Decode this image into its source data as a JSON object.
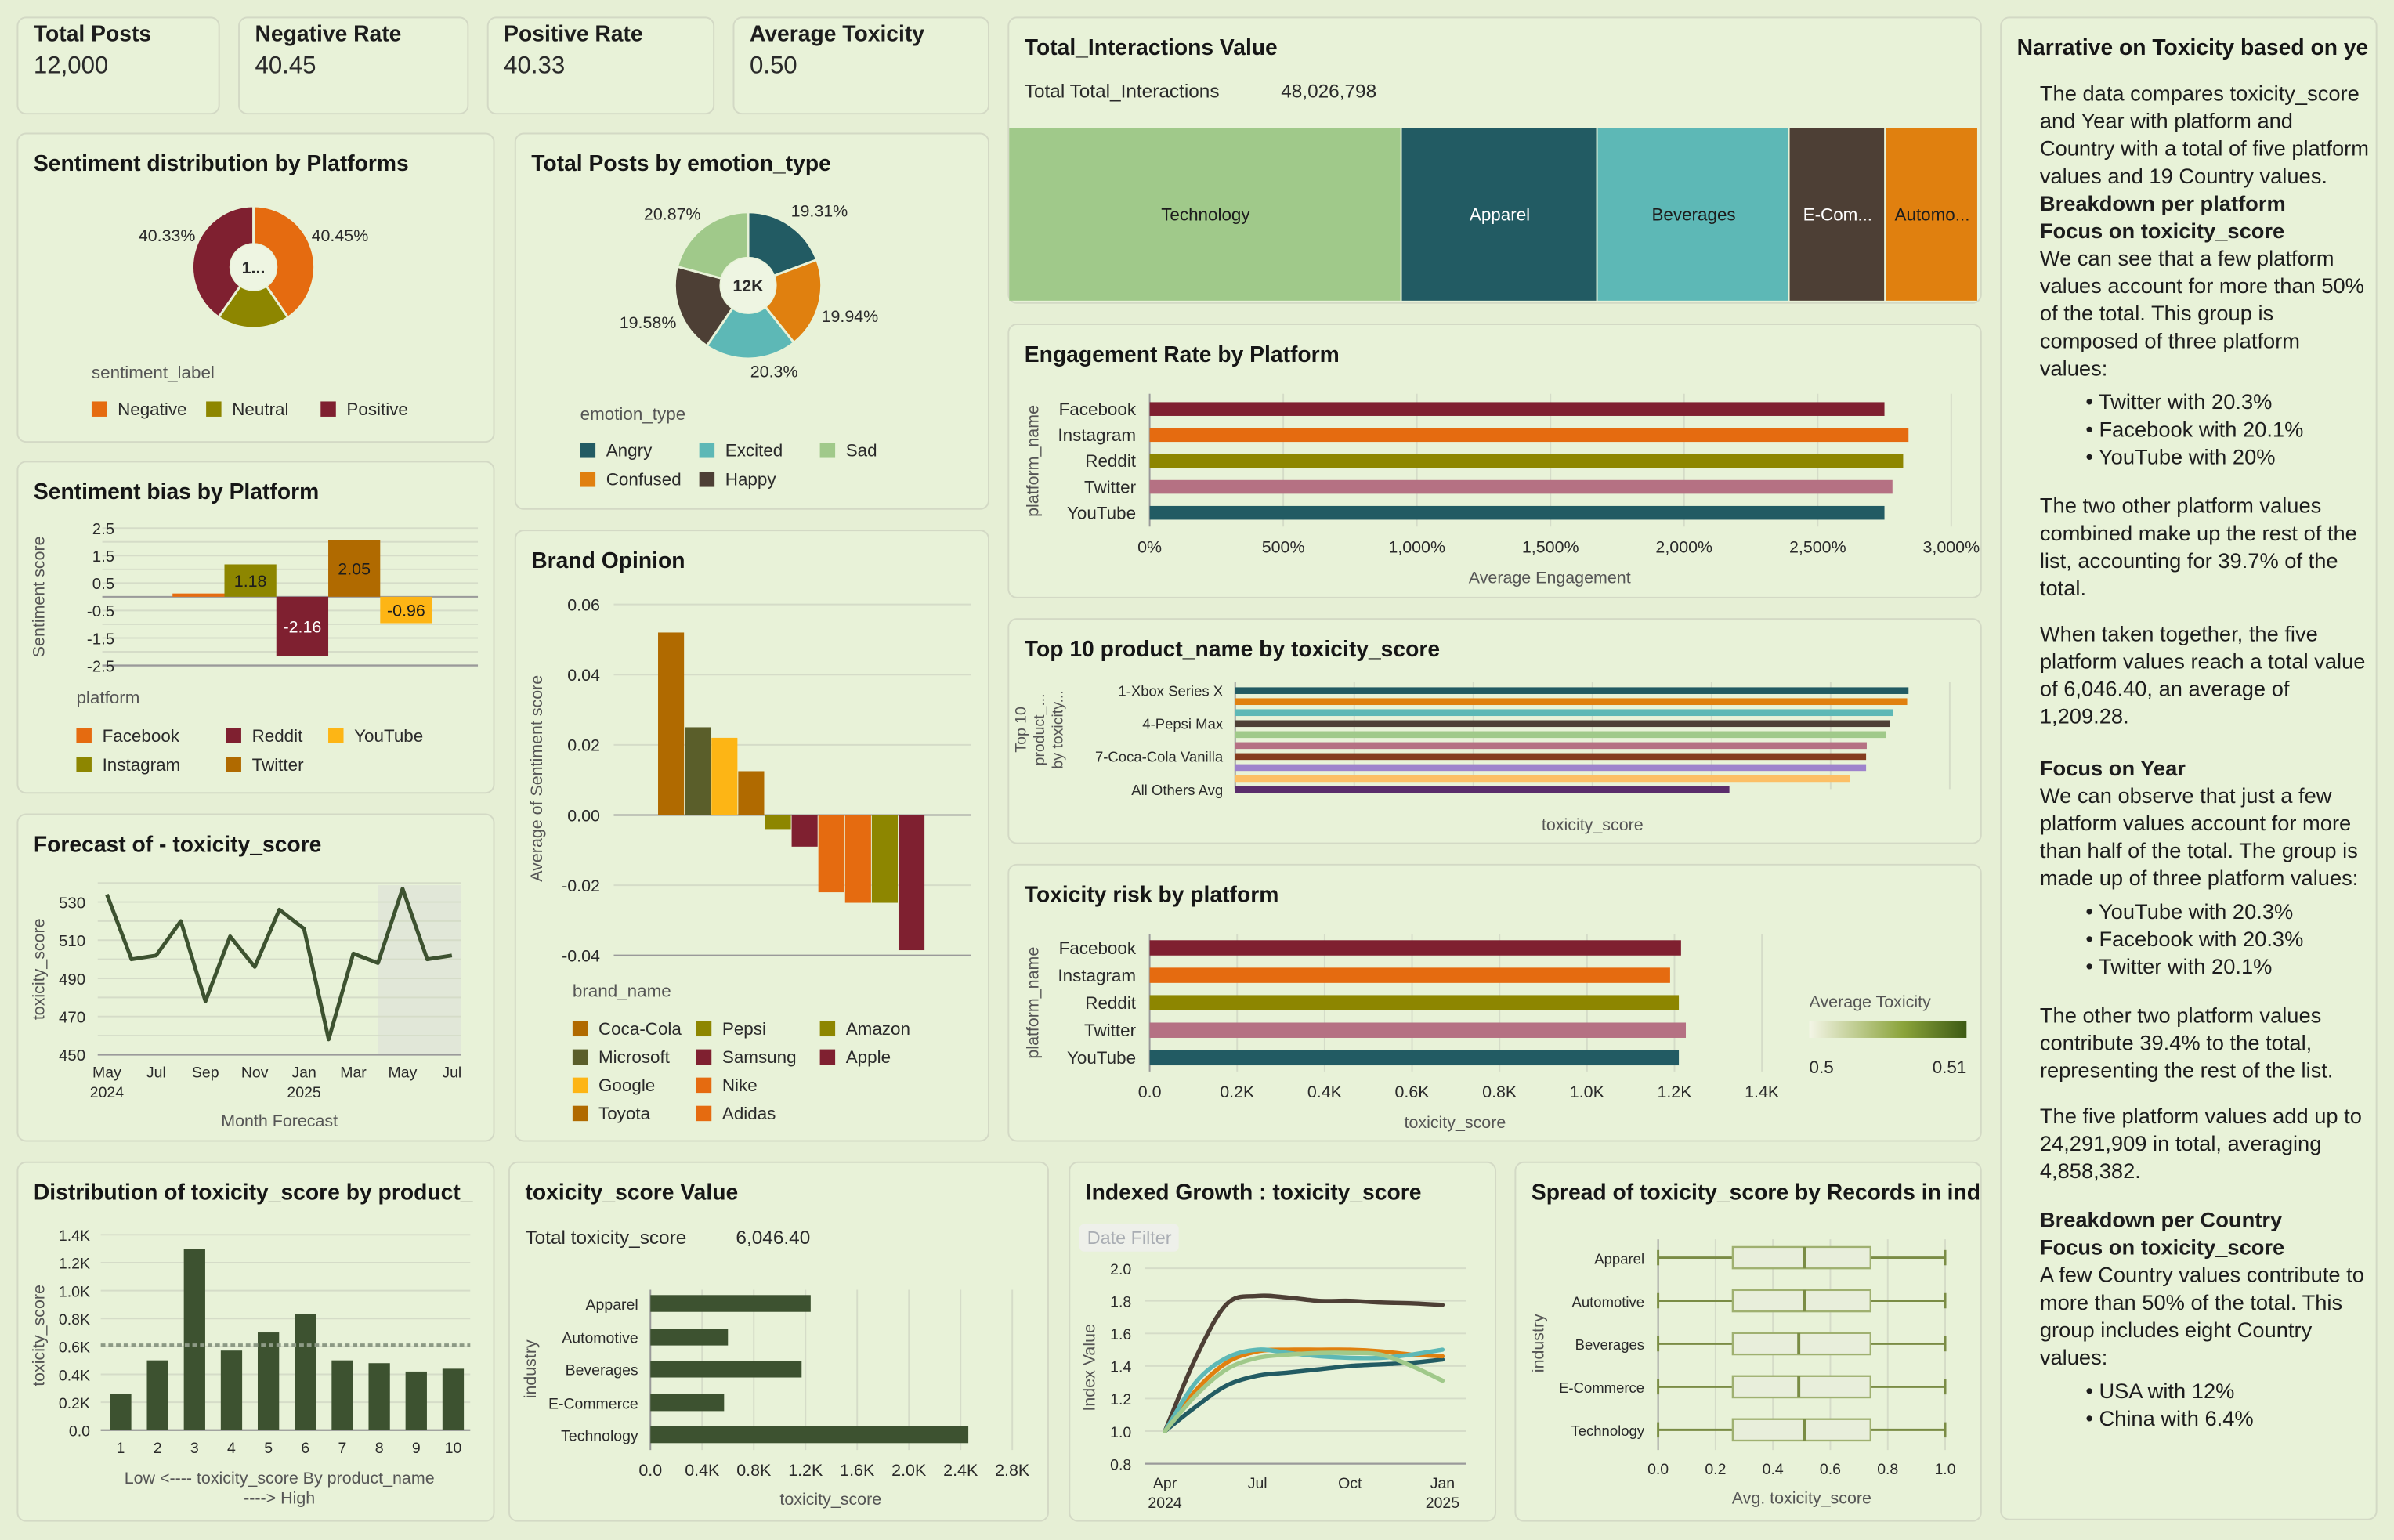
{
  "kpis": [
    {
      "label": "Total Posts",
      "value": "12,000"
    },
    {
      "label": "Negative Rate",
      "value": "40.45"
    },
    {
      "label": "Positive Rate",
      "value": "40.33"
    },
    {
      "label": "Average Toxicity",
      "value": "0.50"
    }
  ],
  "treemap_summary": {
    "label": "Total Total_Interactions",
    "value": "48,026,798"
  },
  "tox_value_summary": {
    "label": "Total toxicity_score",
    "value": "6,046.40"
  },
  "date_filter_label": "Date Filter",
  "narrative": {
    "title": "Narrative on Toxicity based on ye",
    "p1": "The data compares toxicity_score and Year with platform and Country with a total of five platform values and 19 Country values.",
    "h1": "Breakdown per platform",
    "h2": "Focus on toxicity_score",
    "p2": "We can see that a few platform values account for more than 50% of the total. This group is composed of three platform values:",
    "list1": [
      "Twitter with 20.3%",
      "Facebook with 20.1%",
      "YouTube with 20%"
    ],
    "p3": "The two other platform values combined make up the rest of the list, accounting for 39.7% of the total.",
    "p4": "When taken together, the five platform values reach a total value of 6,046.40, an average of 1,209.28.",
    "h3": "Focus on Year",
    "p5": "We can observe that just a few platform values account for more than half of the total. The group is made up of three platform values:",
    "list2": [
      "YouTube with 20.3%",
      "Facebook with 20.3%",
      "Twitter with 20.1%"
    ],
    "p6": "The other two platform values contribute 39.4% to the total, representing the rest of the list.",
    "p7": "The five platform values add up to 24,291,909 in total, averaging 4,858,382.",
    "h4": "Breakdown per Country",
    "h5": "Focus on toxicity_score",
    "p8": "A few Country values contribute to more than 50% of the total. This group includes eight Country values:",
    "list3": [
      "USA with 12%",
      "China with 6.4%"
    ]
  },
  "chart_data": [
    {
      "type": "pie",
      "title": "Sentiment distribution by Platforms",
      "legend_title": "sentiment_label",
      "center_label": "1...",
      "categories": [
        "Negative",
        "Neutral",
        "Positive"
      ],
      "values": [
        40.45,
        19.22,
        40.33
      ],
      "data_labels": [
        "40.45%",
        "",
        "40.33%"
      ],
      "colors": [
        "#e56b10",
        "#8d8600",
        "#7f2030"
      ],
      "legend_placement": "bottom"
    },
    {
      "type": "pie",
      "title": "Total Posts by emotion_type",
      "legend_title": "emotion_type",
      "center_label": "12K",
      "categories": [
        "Angry",
        "Confused",
        "Excited",
        "Happy",
        "Sad"
      ],
      "values": [
        19.31,
        19.94,
        20.3,
        19.58,
        20.87
      ],
      "data_labels": [
        "19.31%",
        "19.94%",
        "20.3%",
        "19.58%",
        "20.87%"
      ],
      "colors": [
        "#225b63",
        "#e0800f",
        "#5db8b6",
        "#4d3f35",
        "#a0c98a"
      ],
      "legend_order": [
        "Angry",
        "Excited",
        "Sad",
        "Confused",
        "Happy"
      ],
      "legend_placement": "bottom"
    },
    {
      "type": "bar",
      "title": "Sentiment bias by Platform",
      "ylabel": "Sentiment score",
      "legend_title": "platform",
      "categories": [
        "Facebook",
        "Instagram",
        "Reddit",
        "Twitter",
        "YouTube"
      ],
      "values": [
        0.12,
        1.18,
        -2.16,
        2.05,
        -0.96
      ],
      "data_labels": [
        "",
        "1.18",
        "-2.16",
        "2.05",
        "-0.96"
      ],
      "colors": [
        "#e56b10",
        "#8d8600",
        "#7f2030",
        "#b06a00",
        "#fdb515"
      ],
      "yticks": [
        "2.5",
        "1.5",
        "0.5",
        "-0.5",
        "-1.5",
        "-2.5"
      ],
      "ylim": [
        -2.5,
        2.5
      ],
      "legend_order": [
        "Facebook",
        "Reddit",
        "YouTube",
        "Instagram",
        "Twitter"
      ],
      "grid": true
    },
    {
      "type": "line",
      "title": "Forecast of - toxicity_score",
      "xlabel": "Month Forecast",
      "ylabel": "toxicity_score",
      "x": [
        "May 2024",
        "Jun 2024",
        "Jul 2024",
        "Aug 2024",
        "Sep 2024",
        "Oct 2024",
        "Nov 2024",
        "Dec 2024",
        "Jan 2025",
        "Feb 2025",
        "Mar 2025",
        "Apr 2025",
        "May 2025",
        "Jun 2025",
        "Jul 2025"
      ],
      "values": [
        534,
        500,
        502,
        520,
        478,
        512,
        496,
        526,
        516,
        458,
        503,
        498,
        537,
        500,
        502
      ],
      "forecast_start": "Apr 2025",
      "xticks": [
        "May",
        "Jul",
        "Sep",
        "Nov",
        "Jan",
        "Mar",
        "May",
        "Jul"
      ],
      "xtick_years": [
        "2024",
        "",
        "",
        "",
        "2025",
        "",
        "",
        ""
      ],
      "yticks": [
        "450",
        "470",
        "490",
        "510",
        "530"
      ],
      "ylim": [
        450,
        540
      ],
      "color": "#3d5230",
      "grid": true
    },
    {
      "type": "bar",
      "title": "Brand Opinion",
      "xlabel": "brand_name",
      "ylabel": "Average of Sentiment score",
      "categories": [
        "Coca-Cola",
        "Microsoft",
        "Google",
        "Toyota",
        "Pepsi",
        "Samsung",
        "Nike",
        "Adidas",
        "Amazon",
        "Apple"
      ],
      "values": [
        0.052,
        0.025,
        0.022,
        0.0125,
        -0.004,
        -0.009,
        -0.022,
        -0.025,
        -0.025,
        -0.0385
      ],
      "colors": [
        "#b06a00",
        "#5a5e2a",
        "#fdb515",
        "#b06a00",
        "#8d8600",
        "#7f2030",
        "#e56b10",
        "#e56b10",
        "#8d8600",
        "#7f2030"
      ],
      "yticks": [
        "0.06",
        "0.04",
        "0.02",
        "0.00",
        "-0.02",
        "-0.04"
      ],
      "ylim": [
        -0.04,
        0.06
      ],
      "legend_order": [
        "Coca-Cola",
        "Pepsi",
        "Amazon",
        "Microsoft",
        "Samsung",
        "Apple",
        "Google",
        "Nike",
        "Toyota",
        "Adidas"
      ],
      "grid": true
    },
    {
      "type": "treemap",
      "title": "Total_Interactions Value",
      "categories": [
        "Technology",
        "Apparel",
        "Beverages",
        "E-Com...",
        "Automo..."
      ],
      "share_percent": [
        40.5,
        20.2,
        19.8,
        9.9,
        9.6
      ],
      "colors": [
        "#a0c98a",
        "#225b63",
        "#5db8b6",
        "#4d3f35",
        "#e0800f"
      ],
      "label_colors": [
        "#1d1d1d",
        "#ffffff",
        "#1d1d1d",
        "#ffffff",
        "#1d1d1d"
      ]
    },
    {
      "type": "bar",
      "orientation": "horizontal",
      "title": "Engagement Rate by Platform",
      "xlabel": "Average Engagement",
      "ylabel": "platform_name",
      "categories": [
        "Facebook",
        "Instagram",
        "Reddit",
        "Twitter",
        "YouTube"
      ],
      "values": [
        2750,
        2840,
        2820,
        2780,
        2750
      ],
      "colors": [
        "#7f2030",
        "#e56b10",
        "#8d8600",
        "#b57183",
        "#225b63"
      ],
      "xticks": [
        "0%",
        "500%",
        "1,000%",
        "1,500%",
        "2,000%",
        "2,500%",
        "3,000%"
      ],
      "xlim": [
        0,
        3000
      ]
    },
    {
      "type": "bar",
      "orientation": "horizontal",
      "title": "Top 10 product_name by toxicity_score",
      "xlabel": "toxicity_score",
      "ylabel_lines": [
        "Top 10",
        "product_...",
        "by toxicity..."
      ],
      "category_labels": [
        "1-Xbox Series X",
        "",
        "",
        "4-Pepsi Max",
        "",
        "",
        "7-Coca-Cola Vanilla",
        "",
        "",
        "All Others Avg"
      ],
      "relative_values": [
        1.0,
        0.998,
        0.977,
        0.972,
        0.966,
        0.938,
        0.937,
        0.937,
        0.913,
        0.734
      ],
      "colors": [
        "#225b63",
        "#e0800f",
        "#5db8b6",
        "#4d3f35",
        "#a0c98a",
        "#b57183",
        "#843c1e",
        "#9e83cc",
        "#fcbf66",
        "#5a2d6b"
      ]
    },
    {
      "type": "bar",
      "orientation": "horizontal",
      "title": "Toxicity risk by platform",
      "xlabel": "toxicity_score",
      "ylabel": "platform_name",
      "categories": [
        "Facebook",
        "Instagram",
        "Reddit",
        "Twitter",
        "YouTube"
      ],
      "values": [
        1215,
        1190,
        1210,
        1226,
        1210
      ],
      "colors": [
        "#7f2030",
        "#e56b10",
        "#8d8600",
        "#b57183",
        "#225b63"
      ],
      "xticks": [
        "0.0",
        "0.2K",
        "0.4K",
        "0.6K",
        "0.8K",
        "1.0K",
        "1.2K",
        "1.4K"
      ],
      "xlim": [
        0,
        1400
      ],
      "color_legend": {
        "title": "Average Toxicity",
        "min": "0.5",
        "max": "0.51",
        "colors": [
          "#f3f5e6",
          "#3d5a14"
        ]
      }
    },
    {
      "type": "bar",
      "title": "Distribution of toxicity_score by product_",
      "xlabel_lines": [
        "Low <---- toxicity_score By product_name",
        "----> High"
      ],
      "ylabel": "toxicity_score",
      "categories": [
        "1",
        "2",
        "3",
        "4",
        "5",
        "6",
        "7",
        "8",
        "9",
        "10"
      ],
      "values": [
        260,
        500,
        1300,
        570,
        700,
        830,
        500,
        480,
        420,
        440
      ],
      "average_line": 610,
      "color": "#3d5230",
      "yticks": [
        "0.0",
        "0.2K",
        "0.4K",
        "0.6K",
        "0.8K",
        "1.0K",
        "1.2K",
        "1.4K"
      ],
      "ylim": [
        0,
        1400
      ]
    },
    {
      "type": "bar",
      "orientation": "horizontal",
      "title": "toxicity_score Value",
      "xlabel": "toxicity_score",
      "ylabel": "industry",
      "categories": [
        "Apparel",
        "Automotive",
        "Beverages",
        "E-Commerce",
        "Technology"
      ],
      "values": [
        1240,
        600,
        1170,
        570,
        2460
      ],
      "color": "#3d5230",
      "xticks": [
        "0.0",
        "0.4K",
        "0.8K",
        "1.2K",
        "1.6K",
        "2.0K",
        "2.4K",
        "2.8K"
      ],
      "xlim": [
        0,
        2800
      ]
    },
    {
      "type": "line",
      "title": "Indexed Growth : toxicity_score",
      "ylabel": "Index Value",
      "x": [
        "Apr 2024",
        "May 2024",
        "Jun 2024",
        "Jul 2024",
        "Aug 2024",
        "Sep 2024",
        "Oct 2024",
        "Nov 2024",
        "Dec 2024",
        "Jan 2025"
      ],
      "series": [
        {
          "color": "#4d3f35",
          "values": [
            1.0,
            1.45,
            1.78,
            1.83,
            1.82,
            1.8,
            1.8,
            1.79,
            1.785,
            1.775
          ]
        },
        {
          "color": "#225b63",
          "values": [
            1.0,
            1.15,
            1.28,
            1.34,
            1.36,
            1.38,
            1.4,
            1.41,
            1.42,
            1.44
          ]
        },
        {
          "color": "#e0800f",
          "values": [
            1.0,
            1.25,
            1.42,
            1.49,
            1.5,
            1.5,
            1.5,
            1.49,
            1.47,
            1.46
          ]
        },
        {
          "color": "#5db8b6",
          "values": [
            1.0,
            1.3,
            1.45,
            1.5,
            1.48,
            1.46,
            1.45,
            1.45,
            1.47,
            1.5
          ]
        },
        {
          "color": "#a0c98a",
          "values": [
            1.0,
            1.22,
            1.38,
            1.45,
            1.47,
            1.48,
            1.48,
            1.47,
            1.4,
            1.31
          ]
        }
      ],
      "xticks": [
        "Apr",
        "Jul",
        "Oct",
        "Jan"
      ],
      "xtick_years": [
        "2024",
        "",
        "",
        "2025"
      ],
      "yticks": [
        "2.0",
        "1.8",
        "1.6",
        "1.4",
        "1.2",
        "1.0",
        "0.8"
      ],
      "ylim": [
        0.8,
        2.0
      ],
      "grid": true
    },
    {
      "type": "box",
      "title": "Spread of toxicity_score by Records in ind",
      "xlabel": "Avg. toxicity_score",
      "ylabel": "industry",
      "categories": [
        "Apparel",
        "Automotive",
        "Beverages",
        "E-Commerce",
        "Technology"
      ],
      "min": [
        0,
        0,
        0,
        0,
        0
      ],
      "q1": [
        0.26,
        0.26,
        0.26,
        0.26,
        0.26
      ],
      "median": [
        0.51,
        0.51,
        0.49,
        0.49,
        0.51
      ],
      "q3": [
        0.74,
        0.74,
        0.74,
        0.74,
        0.74
      ],
      "max": [
        1.0,
        1.0,
        1.0,
        1.0,
        1.0
      ],
      "xticks": [
        "0.0",
        "0.2",
        "0.4",
        "0.6",
        "0.8",
        "1.0"
      ],
      "xlim": [
        0,
        1
      ],
      "color": "#7a8c45"
    }
  ]
}
